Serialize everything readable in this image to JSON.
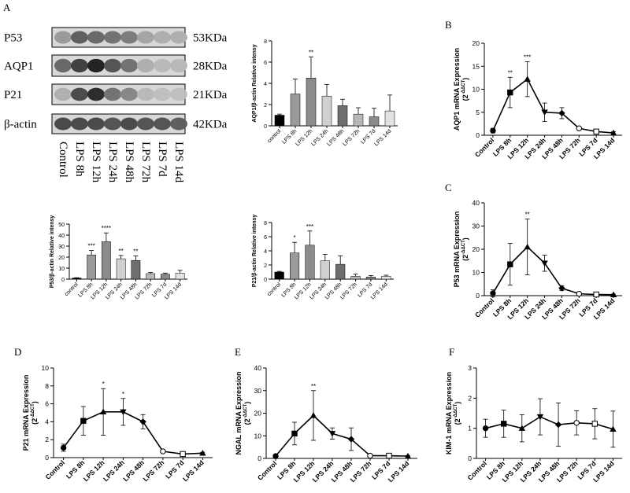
{
  "panel_labels": [
    "A",
    "B",
    "C",
    "D",
    "E",
    "F"
  ],
  "blot": {
    "proteins": [
      "P53",
      "AQP1",
      "P21",
      "β-actin"
    ],
    "sizes": [
      "53KDa",
      "28KDa",
      "21KDa",
      "42KDa"
    ],
    "lanes": [
      "Control",
      "LPS 8h",
      "LPS 12h",
      "LPS 24h",
      "LPS 48h",
      "LPS 72h",
      "LPS 7d",
      "LPS 14d"
    ]
  },
  "marker_shapes": [
    "circle",
    "square",
    "triangle",
    "down",
    "diamond",
    "open-circle",
    "open-square",
    "triangle"
  ],
  "chart_data": [
    {
      "type": "bar",
      "ylabel": "AQP1/β-actin Relative intensy",
      "categories": [
        "control",
        "LPS 8h",
        "LPS 12h",
        "LPS 24h",
        "LPS 48h",
        "LPS 72h",
        "LPS 7d",
        "LPS 14d"
      ],
      "values": [
        1,
        3.0,
        4.5,
        2.8,
        1.9,
        1.1,
        0.85,
        1.4
      ],
      "errors": [
        0.1,
        1.4,
        2.0,
        1.1,
        0.6,
        0.6,
        0.8,
        1.5
      ],
      "annotations": [
        null,
        null,
        "**",
        null,
        null,
        null,
        null,
        null
      ],
      "colors": [
        "#000000",
        "#9a9a9a",
        "#8c8c8c",
        "#d0d0d0",
        "#6e6e6e",
        "#b8b8b8",
        "#8a8a8a",
        "#e2e2e2"
      ],
      "ylim": [
        0,
        8
      ],
      "yticks": [
        0,
        2,
        4,
        6,
        8
      ],
      "error_bars": "up"
    },
    {
      "type": "bar",
      "ylabel": "P53/β-actin Relative intensy",
      "categories": [
        "control",
        "LPS 8h",
        "LPS 12h",
        "LPS 24h",
        "LPS 48h",
        "LPS 72h",
        "LPS 7d",
        "LPS 14d"
      ],
      "values": [
        1,
        22,
        34,
        18.5,
        17,
        5,
        4.5,
        5.5
      ],
      "errors": [
        0.3,
        4,
        8,
        3,
        4,
        1,
        1,
        2.5
      ],
      "annotations": [
        null,
        "***",
        "****",
        "**",
        "**",
        null,
        null,
        null
      ],
      "colors": [
        "#000000",
        "#9a9a9a",
        "#8c8c8c",
        "#d0d0d0",
        "#6e6e6e",
        "#b8b8b8",
        "#8a8a8a",
        "#e2e2e2"
      ],
      "ylim": [
        0,
        50
      ],
      "yticks": [
        0,
        10,
        20,
        30,
        40,
        50
      ],
      "error_bars": "up"
    },
    {
      "type": "bar",
      "ylabel": "P21/β-actin Relative intensy",
      "categories": [
        "control",
        "LPS 8h",
        "LPS 12h",
        "LPS 24h",
        "LPS 48h",
        "LPS 72h",
        "LPS 7d",
        "LPS 14d"
      ],
      "values": [
        1,
        3.7,
        4.8,
        2.6,
        2.1,
        0.4,
        0.3,
        0.4
      ],
      "errors": [
        0.1,
        1.5,
        2.0,
        0.9,
        1.2,
        0.3,
        0.2,
        0.15
      ],
      "annotations": [
        null,
        "*",
        "***",
        null,
        null,
        null,
        null,
        null
      ],
      "colors": [
        "#000000",
        "#9a9a9a",
        "#8c8c8c",
        "#d0d0d0",
        "#6e6e6e",
        "#b8b8b8",
        "#8a8a8a",
        "#e2e2e2"
      ],
      "ylim": [
        0,
        8
      ],
      "yticks": [
        0,
        2,
        4,
        6,
        8
      ],
      "error_bars": "up"
    },
    {
      "type": "line",
      "ylabel": "AQP1 mRNA Expression",
      "ylabel_unit": {
        "base": "(2",
        "sup": "-ΔΔCT",
        "end": ")"
      },
      "categories": [
        "Control",
        "LPS 8h",
        "LPS 12h",
        "LPS 24h",
        "LPS 48h",
        "LPS 72h",
        "LPS 7d",
        "LPS 14d"
      ],
      "values": [
        1,
        9.3,
        12.2,
        5,
        4.8,
        1.5,
        0.8,
        0.5
      ],
      "errors": [
        0.5,
        3.3,
        3.8,
        2,
        1.2,
        0.3,
        0.3,
        0.3
      ],
      "annotations": [
        null,
        "**",
        "***",
        null,
        null,
        null,
        null,
        null
      ],
      "color": "#000000",
      "ylim": [
        0,
        20
      ],
      "yticks": [
        0,
        5,
        10,
        15,
        20
      ],
      "error_bars": "both"
    },
    {
      "type": "line",
      "ylabel": "P53 mRNA Expression",
      "ylabel_unit": {
        "base": "(2",
        "sup": "-ΔΔCT",
        "end": ")"
      },
      "categories": [
        "Control",
        "LPS 8h",
        "LPS 12h",
        "LPS 24h",
        "LPS 48h",
        "LPS 72h",
        "LPS 7d",
        "LPS 14d"
      ],
      "values": [
        1,
        13.5,
        21,
        14,
        3.2,
        0.8,
        0.5,
        0.4
      ],
      "errors": [
        1.5,
        9,
        12,
        3.5,
        1,
        0.5,
        0.3,
        0.3
      ],
      "annotations": [
        null,
        null,
        "**",
        null,
        null,
        null,
        null,
        null
      ],
      "color": "#000000",
      "ylim": [
        0,
        40
      ],
      "yticks": [
        0,
        10,
        20,
        30,
        40
      ],
      "error_bars": "both"
    },
    {
      "type": "line",
      "ylabel": "P21 mRNA Expression",
      "ylabel_unit": {
        "base": "(2",
        "sup": "-ΔΔCT",
        "end": ")"
      },
      "categories": [
        "Control",
        "LPS 8h",
        "LPS 12h",
        "LPS 24h",
        "LPS 48h",
        "LPS 72h",
        "LPS 7d",
        "LPS 14d"
      ],
      "values": [
        1.1,
        4.1,
        5.1,
        5.1,
        4,
        0.7,
        0.4,
        0.5
      ],
      "errors": [
        0.4,
        1.6,
        2.6,
        1.5,
        0.8,
        0.1,
        0.1,
        0.1
      ],
      "annotations": [
        null,
        null,
        "*",
        "*",
        null,
        null,
        null,
        null
      ],
      "color": "#000000",
      "ylim": [
        0,
        10
      ],
      "yticks": [
        0,
        2,
        4,
        6,
        8,
        10
      ],
      "error_bars": "both"
    },
    {
      "type": "line",
      "ylabel": "NGAL mRNA Expression",
      "ylabel_unit": {
        "base": "(2",
        "sup": "-ΔΔCT",
        "end": ")"
      },
      "categories": [
        "Control",
        "LPS 8h",
        "LPS 12h",
        "LPS 24h",
        "LPS 48h",
        "LPS 72h",
        "LPS 7d",
        "LPS 14d"
      ],
      "values": [
        1,
        11,
        19,
        11,
        8.5,
        1.2,
        1.2,
        1.0
      ],
      "errors": [
        0.3,
        5,
        11,
        2.5,
        5,
        0.5,
        0.3,
        0.3
      ],
      "annotations": [
        null,
        null,
        "**",
        null,
        null,
        null,
        null,
        null
      ],
      "color": "#000000",
      "ylim": [
        0,
        40
      ],
      "yticks": [
        0,
        10,
        20,
        30,
        40
      ],
      "error_bars": "both"
    },
    {
      "type": "line",
      "ylabel": "KIM-1 mRNA Expression",
      "ylabel_unit": {
        "base": "(2",
        "sup": "-ΔΔCT",
        "end": ")"
      },
      "categories": [
        "Control",
        "LPS 8h",
        "LPS 12h",
        "LPS 24h",
        "LPS 48h",
        "LPS 72h",
        "LPS 7d",
        "LPS 14d"
      ],
      "values": [
        1,
        1.15,
        1.0,
        1.38,
        1.12,
        1.18,
        1.15,
        0.97
      ],
      "errors": [
        0.3,
        0.45,
        0.45,
        0.6,
        0.72,
        0.4,
        0.5,
        0.6
      ],
      "annotations": [
        null,
        null,
        null,
        null,
        null,
        null,
        null,
        null
      ],
      "color": "#000000",
      "ylim": [
        0,
        3
      ],
      "yticks": [
        0,
        1,
        2,
        3
      ],
      "error_bars": "both"
    }
  ]
}
